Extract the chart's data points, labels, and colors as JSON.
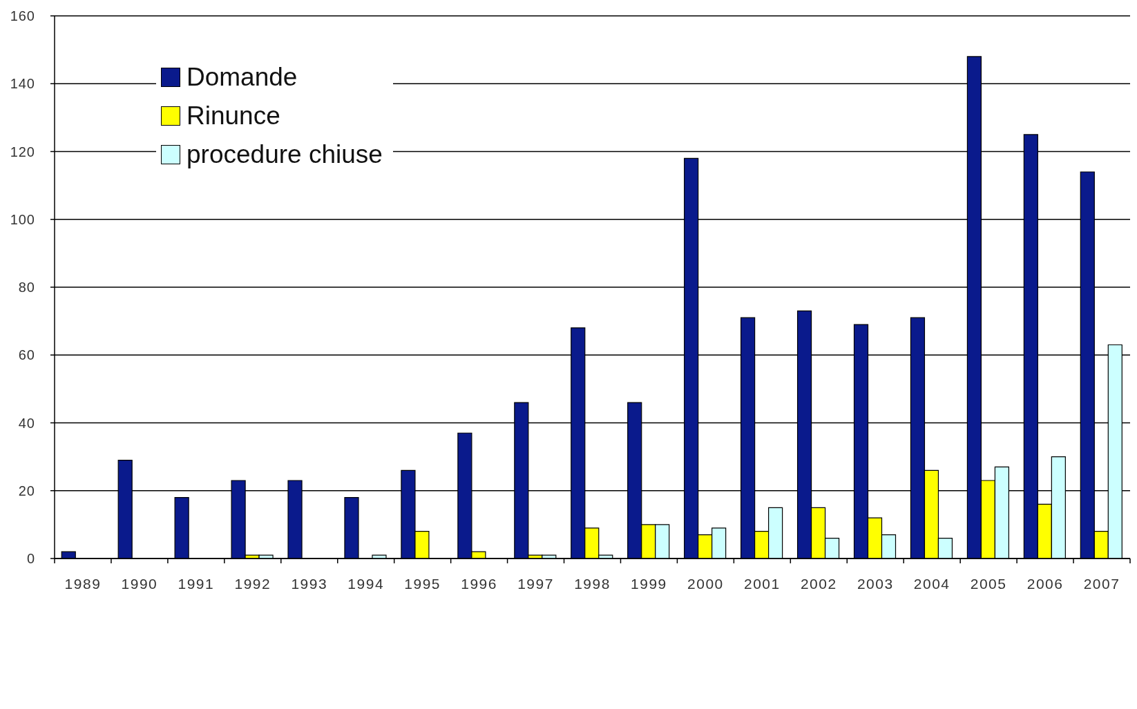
{
  "chart_data": {
    "type": "bar",
    "categories": [
      "1989",
      "1990",
      "1991",
      "1992",
      "1993",
      "1994",
      "1995",
      "1996",
      "1997",
      "1998",
      "1999",
      "2000",
      "2001",
      "2002",
      "2003",
      "2004",
      "2005",
      "2006",
      "2007"
    ],
    "series": [
      {
        "name": "Domande",
        "color": "#0a1a8c",
        "values": [
          2,
          29,
          18,
          23,
          23,
          18,
          26,
          37,
          46,
          68,
          46,
          118,
          71,
          73,
          69,
          71,
          148,
          125,
          114
        ]
      },
      {
        "name": "Rinunce",
        "color": "#ffff00",
        "values": [
          0,
          0,
          0,
          1,
          0,
          0,
          8,
          2,
          1,
          9,
          10,
          7,
          8,
          15,
          12,
          26,
          23,
          16,
          8
        ]
      },
      {
        "name": "procedure chiuse",
        "color": "#ccffff",
        "values": [
          0,
          0,
          0,
          1,
          0,
          1,
          0,
          0,
          1,
          1,
          10,
          9,
          15,
          6,
          7,
          6,
          27,
          30,
          63
        ]
      }
    ],
    "ylim": [
      0,
      160
    ],
    "yticks": [
      0,
      20,
      40,
      60,
      80,
      100,
      120,
      140,
      160
    ],
    "grid": "y",
    "legend": "top left"
  }
}
